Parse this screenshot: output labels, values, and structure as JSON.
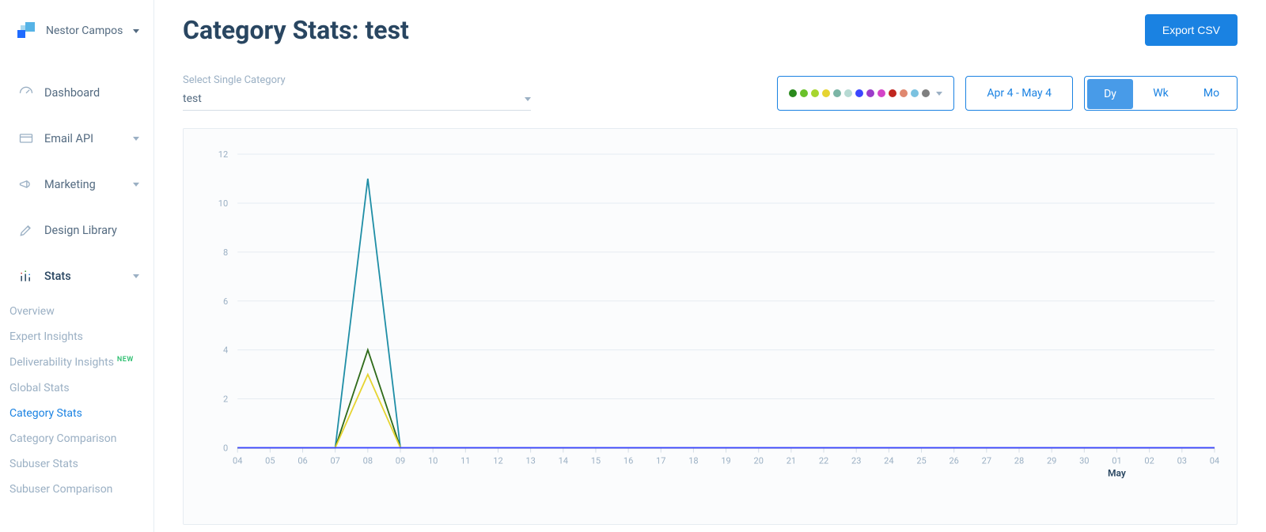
{
  "user": {
    "name": "Nestor Campos"
  },
  "sidebar": {
    "items": [
      {
        "label": "Dashboard",
        "icon": "gauge"
      },
      {
        "label": "Email API",
        "icon": "card",
        "expandable": true
      },
      {
        "label": "Marketing",
        "icon": "megaphone",
        "expandable": true
      },
      {
        "label": "Design Library",
        "icon": "pencil-ruler"
      },
      {
        "label": "Stats",
        "icon": "bars",
        "expandable": true,
        "open": true
      }
    ],
    "stats_sub": [
      {
        "label": "Overview"
      },
      {
        "label": "Expert Insights"
      },
      {
        "label": "Deliverability Insights",
        "badge": "NEW"
      },
      {
        "label": "Global Stats"
      },
      {
        "label": "Category Stats",
        "active": true
      },
      {
        "label": "Category Comparison"
      },
      {
        "label": "Subuser Stats"
      },
      {
        "label": "Subuser Comparison"
      }
    ]
  },
  "header": {
    "title": "Category Stats: test",
    "export_label": "Export CSV"
  },
  "category_selector": {
    "label": "Select Single Category",
    "value": "test"
  },
  "legend_colors": [
    "#2a8a1d",
    "#6ac12a",
    "#a7d62f",
    "#e6d431",
    "#7bb5a5",
    "#b7dad3",
    "#3b46ff",
    "#9b3cc9",
    "#d444c8",
    "#c0261f",
    "#e0886f",
    "#7bc2e0",
    "#7f7f7f"
  ],
  "date_range": "Apr 4 - May 4",
  "granularity": {
    "options": [
      "Dy",
      "Wk",
      "Mo"
    ],
    "active": "Dy"
  },
  "chart": {
    "type": "line",
    "background_color": "#fbfcfd",
    "grid_color": "#e6ecf2",
    "axis_color": "#d4dde6",
    "tick_label_color": "#9bb0c4",
    "tick_fontsize": 11,
    "y": {
      "min": 0,
      "max": 12,
      "step": 2
    },
    "x": {
      "ticks": [
        "04",
        "05",
        "06",
        "07",
        "08",
        "09",
        "10",
        "11",
        "12",
        "13",
        "14",
        "15",
        "16",
        "17",
        "18",
        "19",
        "20",
        "21",
        "22",
        "23",
        "24",
        "25",
        "26",
        "27",
        "28",
        "29",
        "30",
        "01",
        "02",
        "03",
        "04"
      ],
      "month_marker": {
        "index": 27,
        "label": "May"
      }
    },
    "line_width": 1.8,
    "series": [
      {
        "color": "#1f8ea6",
        "values": [
          0,
          0,
          0,
          0,
          11,
          0,
          0,
          0,
          0,
          0,
          0,
          0,
          0,
          0,
          0,
          0,
          0,
          0,
          0,
          0,
          0,
          0,
          0,
          0,
          0,
          0,
          0,
          0,
          0,
          0,
          0
        ]
      },
      {
        "color": "#2f6b1a",
        "values": [
          0,
          0,
          0,
          0,
          4,
          0,
          0,
          0,
          0,
          0,
          0,
          0,
          0,
          0,
          0,
          0,
          0,
          0,
          0,
          0,
          0,
          0,
          0,
          0,
          0,
          0,
          0,
          0,
          0,
          0,
          0
        ]
      },
      {
        "color": "#e6d431",
        "values": [
          0,
          0,
          0,
          0,
          3,
          0,
          0,
          0,
          0,
          0,
          0,
          0,
          0,
          0,
          0,
          0,
          0,
          0,
          0,
          0,
          0,
          0,
          0,
          0,
          0,
          0,
          0,
          0,
          0,
          0,
          0
        ]
      },
      {
        "color": "#3b46ff",
        "values": [
          0,
          0,
          0,
          0,
          0,
          0,
          0,
          0,
          0,
          0,
          0,
          0,
          0,
          0,
          0,
          0,
          0,
          0,
          0,
          0,
          0,
          0,
          0,
          0,
          0,
          0,
          0,
          0,
          0,
          0,
          0
        ]
      }
    ]
  }
}
